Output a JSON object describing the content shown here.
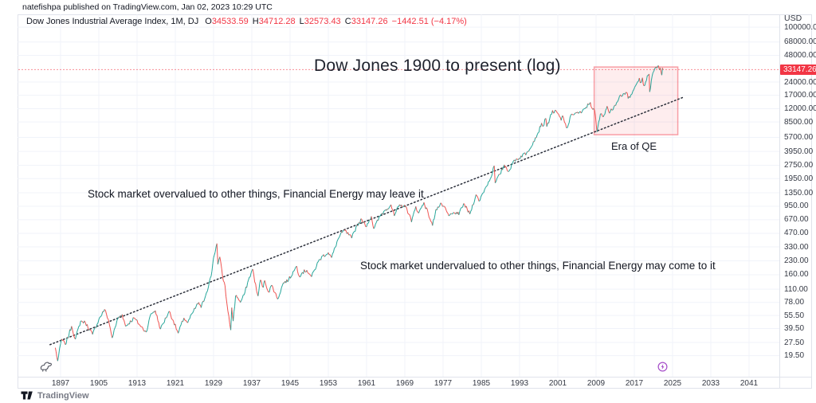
{
  "header": {
    "published_line": "natefishpa published on TradingView.com, Jan 02, 2023 10:29 UTC"
  },
  "legend": {
    "symbol": "Dow Jones Industrial Average Index, 1M, DJ",
    "ohlc": [
      {
        "label": "O",
        "value": "34533.59"
      },
      {
        "label": "H",
        "value": "34712.28"
      },
      {
        "label": "L",
        "value": "32573.43"
      },
      {
        "label": "C",
        "value": "33147.26"
      }
    ],
    "change": "−1442.51 (−4.17%)"
  },
  "annotations": {
    "title": "Dow Jones 1900 to present (log)",
    "overvalued": "Stock market overvalued to other things, Financial Energy may leave it",
    "undervalued": "Stock market undervalued to other things, Financial Energy may come to it",
    "era_of_qe": "Era of QE"
  },
  "price_axis": {
    "currency": "USD",
    "last_price": "33147.26",
    "ticks": [
      "100000.00",
      "68000.00",
      "48000.00",
      "24000.00",
      "17000.00",
      "12000.00",
      "8500.00",
      "5700.00",
      "3950.00",
      "2750.00",
      "1950.00",
      "1350.00",
      "950.00",
      "670.00",
      "470.00",
      "330.00",
      "230.00",
      "160.00",
      "110.00",
      "78.00",
      "55.50",
      "39.50",
      "27.50",
      "19.50"
    ]
  },
  "time_axis": {
    "years": [
      "1897",
      "1905",
      "1913",
      "1921",
      "1929",
      "1937",
      "1945",
      "1953",
      "1961",
      "1969",
      "1977",
      "1985",
      "1993",
      "2001",
      "2009",
      "2017",
      "2025",
      "2033",
      "2041"
    ]
  },
  "footer": {
    "brand": "TradingView"
  },
  "icons": {
    "event_marker": "lightning-circle-icon",
    "sticker": "dinosaur-doodle",
    "brand_mark": "tradingview-logo"
  },
  "colors": {
    "up": "#26a69a",
    "down": "#ef5350",
    "accent_red": "#f23645",
    "grid": "#f0f3fa",
    "border": "#e0e3eb",
    "text_dark": "#131722",
    "axis_text": "#363a45",
    "purple": "#a64ec9",
    "box_fill": "rgba(242,54,69,0.09)",
    "box_stroke": "rgba(242,54,69,0.45)",
    "trend": "#2a2e39"
  },
  "chart_data": {
    "type": "line",
    "title": "Dow Jones 1900 to present (log)",
    "x_unit": "year",
    "y_scale": "log",
    "x_range": [
      1895.9,
      2023.0
    ],
    "y_axis_range": [
      19.5,
      100000
    ],
    "last_close": 33147.26,
    "era_box": {
      "start_year": 2008.6,
      "end_year": 2026.1,
      "top_value": 35500,
      "bottom_value": 6100
    },
    "trendline": {
      "start_year": 1894.8,
      "start_value": 26,
      "end_year": 2027.3,
      "end_value": 16200
    },
    "points": [
      [
        1895.9,
        24
      ],
      [
        1896.4,
        17
      ],
      [
        1897.2,
        30
      ],
      [
        1898.0,
        26
      ],
      [
        1899.3,
        42
      ],
      [
        1900.1,
        30
      ],
      [
        1901.2,
        48
      ],
      [
        1902.2,
        46
      ],
      [
        1903.7,
        34
      ],
      [
        1905.0,
        50
      ],
      [
        1906.2,
        65
      ],
      [
        1907.0,
        50
      ],
      [
        1907.8,
        31
      ],
      [
        1909.0,
        52
      ],
      [
        1909.9,
        57
      ],
      [
        1910.6,
        42
      ],
      [
        1912.4,
        52
      ],
      [
        1913.6,
        43
      ],
      [
        1914.9,
        36
      ],
      [
        1915.9,
        58
      ],
      [
        1916.8,
        63
      ],
      [
        1917.9,
        39
      ],
      [
        1919.7,
        62
      ],
      [
        1920.6,
        48
      ],
      [
        1921.6,
        35
      ],
      [
        1922.8,
        52
      ],
      [
        1923.6,
        46
      ],
      [
        1924.8,
        62
      ],
      [
        1925.9,
        78
      ],
      [
        1926.4,
        68
      ],
      [
        1927.5,
        100
      ],
      [
        1928.5,
        155
      ],
      [
        1929.0,
        250
      ],
      [
        1929.7,
        360
      ],
      [
        1929.9,
        210
      ],
      [
        1930.3,
        255
      ],
      [
        1930.9,
        150
      ],
      [
        1931.4,
        120
      ],
      [
        1931.8,
        75
      ],
      [
        1932.0,
        62
      ],
      [
        1932.6,
        38
      ],
      [
        1932.8,
        68
      ],
      [
        1933.1,
        48
      ],
      [
        1933.6,
        92
      ],
      [
        1934.1,
        88
      ],
      [
        1934.6,
        78
      ],
      [
        1935.4,
        95
      ],
      [
        1936.3,
        140
      ],
      [
        1937.2,
        185
      ],
      [
        1938.0,
        105
      ],
      [
        1938.3,
        92
      ],
      [
        1938.8,
        140
      ],
      [
        1939.4,
        115
      ],
      [
        1939.7,
        138
      ],
      [
        1940.5,
        102
      ],
      [
        1941.2,
        122
      ],
      [
        1942.4,
        85
      ],
      [
        1943.6,
        130
      ],
      [
        1944.7,
        140
      ],
      [
        1946.0,
        185
      ],
      [
        1946.4,
        200
      ],
      [
        1946.9,
        155
      ],
      [
        1947.6,
        170
      ],
      [
        1948.5,
        180
      ],
      [
        1949.5,
        152
      ],
      [
        1950.9,
        225
      ],
      [
        1951.8,
        260
      ],
      [
        1953.0,
        285
      ],
      [
        1953.7,
        250
      ],
      [
        1955.0,
        400
      ],
      [
        1955.9,
        480
      ],
      [
        1956.3,
        512
      ],
      [
        1957.9,
        415
      ],
      [
        1959.0,
        580
      ],
      [
        1960.0,
        675
      ],
      [
        1960.8,
        560
      ],
      [
        1962.0,
        731
      ],
      [
        1962.5,
        530
      ],
      [
        1964.0,
        765
      ],
      [
        1965.0,
        870
      ],
      [
        1966.1,
        990
      ],
      [
        1966.8,
        740
      ],
      [
        1967.7,
        940
      ],
      [
        1968.9,
        980
      ],
      [
        1970.0,
        765
      ],
      [
        1970.4,
        630
      ],
      [
        1971.3,
        945
      ],
      [
        1971.9,
        795
      ],
      [
        1973.0,
        1050
      ],
      [
        1973.9,
        785
      ],
      [
        1974.8,
        575
      ],
      [
        1975.5,
        875
      ],
      [
        1976.7,
        1010
      ],
      [
        1977.9,
        800
      ],
      [
        1978.2,
        740
      ],
      [
        1979.8,
        815
      ],
      [
        1980.3,
        758
      ],
      [
        1981.3,
        1020
      ],
      [
        1982.6,
        775
      ],
      [
        1983.9,
        1285
      ],
      [
        1984.5,
        1085
      ],
      [
        1985.9,
        1550
      ],
      [
        1986.9,
        1950
      ],
      [
        1987.7,
        2720
      ],
      [
        1987.9,
        1740
      ],
      [
        1988.9,
        2180
      ],
      [
        1989.8,
        2790
      ],
      [
        1990.8,
        2365
      ],
      [
        1991.9,
        3168
      ],
      [
        1992.9,
        3300
      ],
      [
        1993.9,
        3754
      ],
      [
        1994.3,
        3600
      ],
      [
        1995.9,
        5117
      ],
      [
        1996.9,
        6448
      ],
      [
        1997.6,
        8260
      ],
      [
        1997.9,
        7580
      ],
      [
        1998.5,
        9330
      ],
      [
        1998.7,
        7540
      ],
      [
        1999.9,
        11497
      ],
      [
        2000.2,
        10700
      ],
      [
        2000.7,
        11200
      ],
      [
        2001.0,
        10600
      ],
      [
        2001.7,
        8850
      ],
      [
        2002.0,
        10020
      ],
      [
        2002.8,
        7290
      ],
      [
        2003.2,
        7900
      ],
      [
        2003.9,
        10450
      ],
      [
        2004.9,
        10780
      ],
      [
        2005.9,
        10715
      ],
      [
        2006.9,
        12460
      ],
      [
        2007.8,
        14160
      ],
      [
        2008.1,
        12300
      ],
      [
        2008.7,
        11500
      ],
      [
        2009.2,
        6550
      ],
      [
        2009.9,
        10430
      ],
      [
        2010.5,
        9690
      ],
      [
        2011.0,
        11577
      ],
      [
        2011.3,
        12810
      ],
      [
        2011.8,
        10655
      ],
      [
        2012.9,
        13100
      ],
      [
        2013.9,
        16576
      ],
      [
        2014.9,
        17820
      ],
      [
        2015.4,
        18300
      ],
      [
        2015.7,
        15670
      ],
      [
        2016.1,
        15990
      ],
      [
        2016.9,
        19760
      ],
      [
        2017.9,
        24720
      ],
      [
        2018.05,
        26616
      ],
      [
        2018.25,
        23530
      ],
      [
        2018.7,
        26830
      ],
      [
        2019.0,
        21790
      ],
      [
        2019.9,
        28540
      ],
      [
        2020.1,
        29550
      ],
      [
        2020.22,
        18590
      ],
      [
        2020.9,
        30600
      ],
      [
        2021.3,
        34200
      ],
      [
        2021.9,
        36330
      ],
      [
        2022.05,
        36800
      ],
      [
        2022.25,
        32980
      ],
      [
        2022.45,
        34580
      ],
      [
        2022.75,
        28725
      ],
      [
        2022.9,
        34590
      ],
      [
        2023.0,
        33147
      ]
    ]
  }
}
